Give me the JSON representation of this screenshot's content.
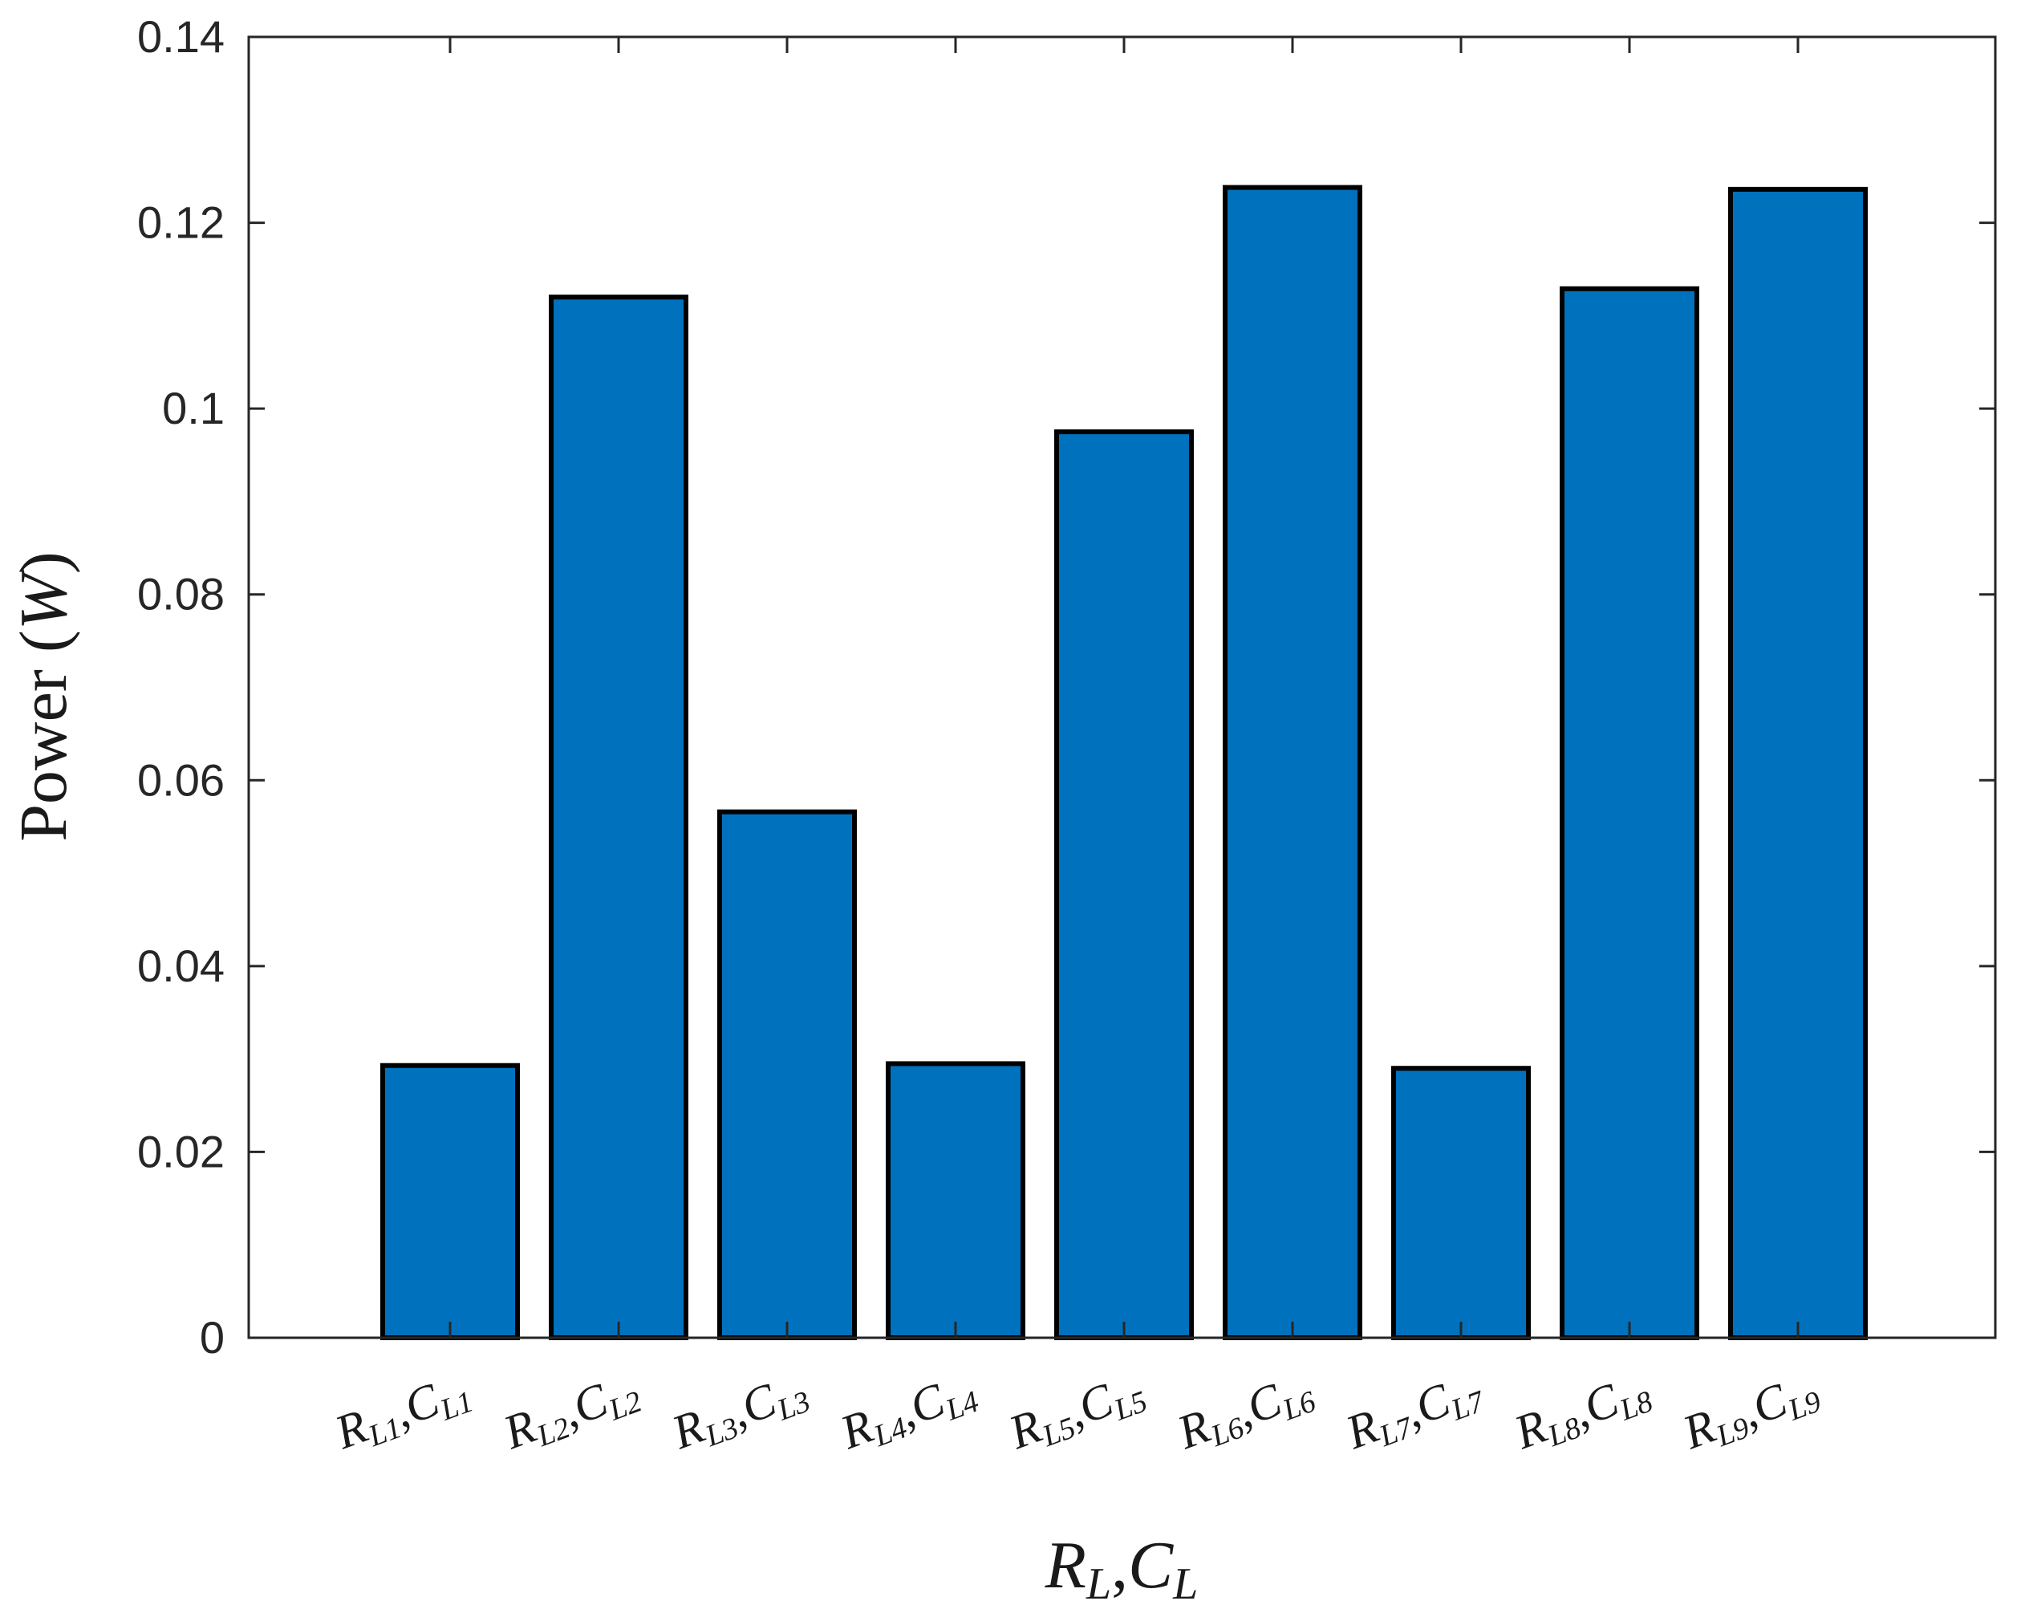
{
  "chart_data": {
    "type": "bar",
    "categories": [
      {
        "r": "R",
        "r_sub": "L1",
        "sep": ",",
        "c": "C",
        "c_sub": "L1"
      },
      {
        "r": "R",
        "r_sub": "L2",
        "sep": ",",
        "c": "C",
        "c_sub": "L2"
      },
      {
        "r": "R",
        "r_sub": "L3",
        "sep": ",",
        "c": "C",
        "c_sub": "L3"
      },
      {
        "r": "R",
        "r_sub": "L4",
        "sep": ",",
        "c": "C",
        "c_sub": "L4"
      },
      {
        "r": "R",
        "r_sub": "L5",
        "sep": ",",
        "c": "C",
        "c_sub": "L5"
      },
      {
        "r": "R",
        "r_sub": "L6",
        "sep": ",",
        "c": "C",
        "c_sub": "L6"
      },
      {
        "r": "R",
        "r_sub": "L7",
        "sep": ",",
        "c": "C",
        "c_sub": "L7"
      },
      {
        "r": "R",
        "r_sub": "L8",
        "sep": ",",
        "c": "C",
        "c_sub": "L8"
      },
      {
        "r": "R",
        "r_sub": "L9",
        "sep": ",",
        "c": "C",
        "c_sub": "L9"
      }
    ],
    "values": [
      0.0293,
      0.112,
      0.0566,
      0.0295,
      0.0975,
      0.1238,
      0.029,
      0.1129,
      0.1236
    ],
    "ylim": [
      0,
      0.14
    ],
    "yticks": [
      "0",
      "0.02",
      "0.04",
      "0.06",
      "0.08",
      "0.1",
      "0.12",
      "0.14"
    ],
    "ylabel": {
      "text": "Power ",
      "open": "(",
      "unit": "W",
      "close": ")"
    },
    "xlabel": {
      "r": "R",
      "r_sub": "L",
      "sep": ",",
      "c": "C",
      "c_sub": "L"
    },
    "grid": false,
    "bar_color": "#0072bd",
    "edge_color": "#000000"
  }
}
